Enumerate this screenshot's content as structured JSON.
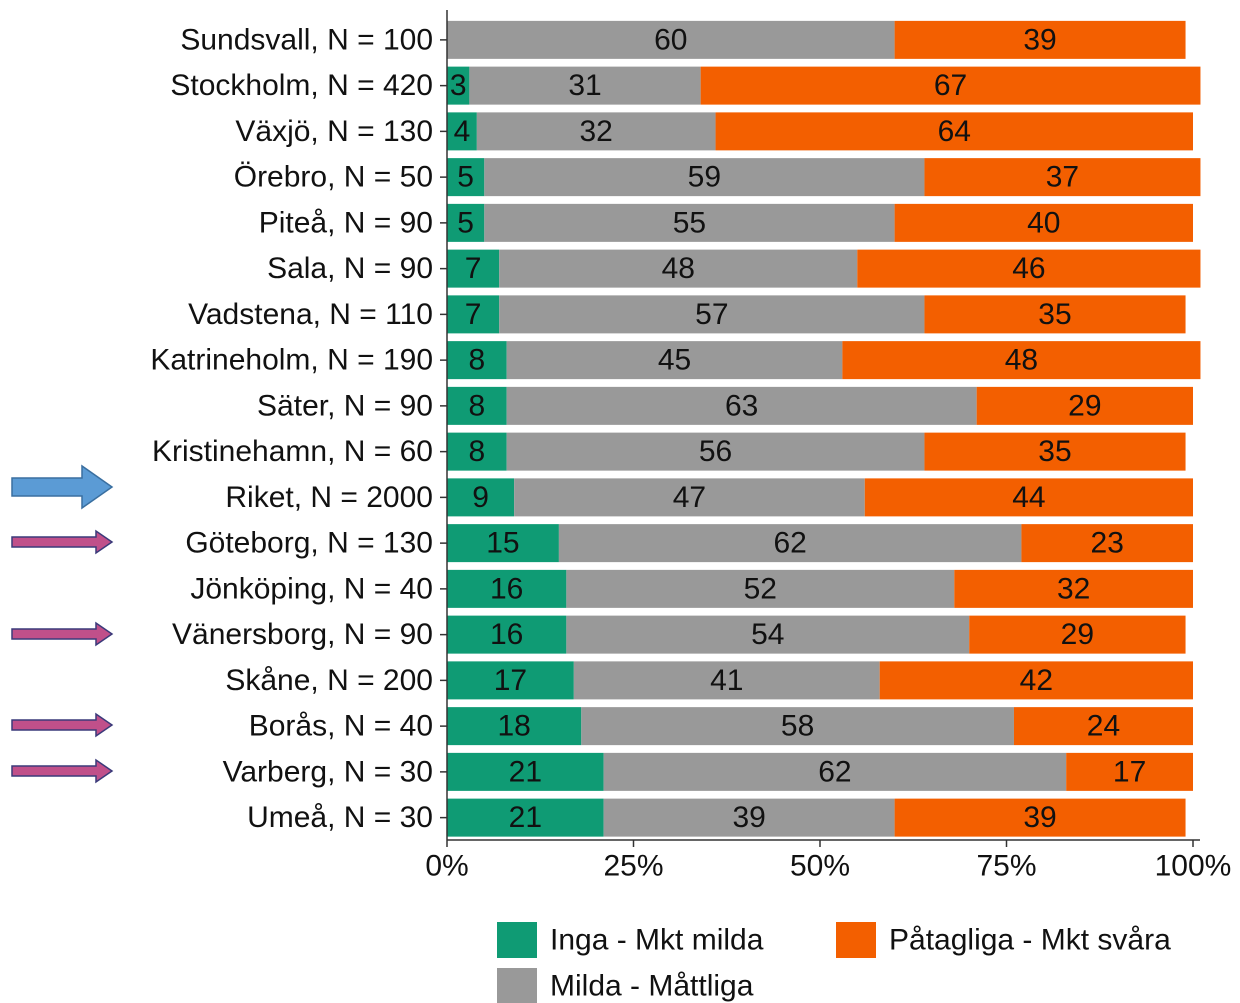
{
  "chart_data": {
    "type": "stacked_bar_horizontal",
    "categories": [
      "Sundsvall, N = 100",
      "Stockholm, N = 420",
      "Växjö, N = 130",
      "Örebro, N = 50",
      "Piteå, N = 90",
      "Sala, N = 90",
      "Vadstena, N = 110",
      "Katrineholm, N = 190",
      "Säter, N = 90",
      "Kristinehamn, N = 60",
      "Riket, N = 2000",
      "Göteborg, N = 130",
      "Jönköping, N = 40",
      "Vänersborg, N = 90",
      "Skåne, N = 200",
      "Borås, N = 40",
      "Varberg, N = 30",
      "Umeå, N = 30"
    ],
    "series": [
      {
        "name": "Inga - Mkt milda",
        "color": "#0f9b74",
        "values": [
          0,
          3,
          4,
          5,
          5,
          7,
          7,
          8,
          8,
          8,
          9,
          15,
          16,
          16,
          17,
          18,
          21,
          21
        ]
      },
      {
        "name": "Milda - Måttliga",
        "color": "#999999",
        "values": [
          60,
          31,
          32,
          59,
          55,
          48,
          57,
          45,
          63,
          56,
          47,
          62,
          52,
          54,
          41,
          58,
          62,
          39
        ]
      },
      {
        "name": "Påtagliga - Mkt svåra",
        "color": "#f35f00",
        "values": [
          39,
          67,
          64,
          37,
          40,
          46,
          35,
          48,
          29,
          35,
          44,
          23,
          32,
          29,
          42,
          24,
          17,
          39
        ]
      }
    ],
    "xlim": [
      0,
      100
    ],
    "xticks": [
      {
        "value": 0,
        "label": "0%"
      },
      {
        "value": 25,
        "label": "25%"
      },
      {
        "value": 50,
        "label": "50%"
      },
      {
        "value": 75,
        "label": "75%"
      },
      {
        "value": 100,
        "label": "100%"
      }
    ]
  }
}
